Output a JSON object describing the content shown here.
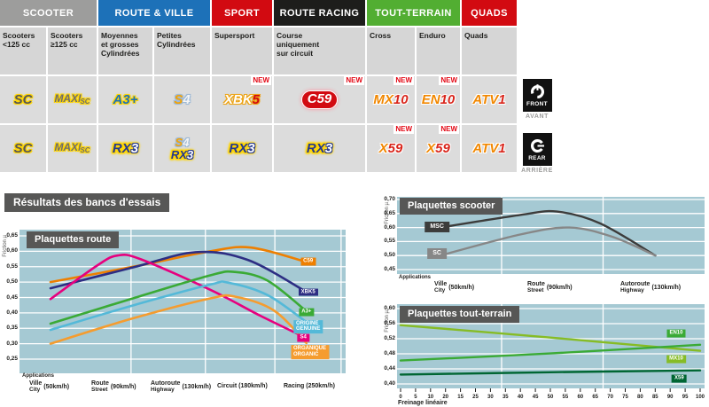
{
  "section_title": "Résultats des bancs d'essais",
  "new_label": "NEW",
  "side": {
    "front": "FRONT",
    "front_fr": "AVANT",
    "rear": "REAR",
    "rear_fr": "ARRIÈRE"
  },
  "table": {
    "categories": [
      {
        "label": "SCOOTER",
        "color": "#9d9d9c",
        "cols": 2
      },
      {
        "label": "ROUTE & VILLE",
        "color": "#1d71b8",
        "cols": 2
      },
      {
        "label": "SPORT",
        "color": "#d20a11",
        "cols": 1
      },
      {
        "label": "ROUTE RACING",
        "color": "#1d1d1b",
        "cols": 1
      },
      {
        "label": "TOUT-TERRAIN",
        "color": "#52ae32",
        "cols": 2
      },
      {
        "label": "QUADS",
        "color": "#d20a11",
        "cols": 1
      }
    ],
    "subcategories": [
      "Scooters\n<125 cc",
      "Scooters\n≥125 cc",
      "Moyennes\net grosses\nCylindrées",
      "Petites\nCylindrées",
      "Supersport",
      "Course\nuniquement\nsur circuit",
      "Cross",
      "Enduro",
      "Quads"
    ],
    "front_row": [
      {
        "badges": [
          {
            "text": "SC",
            "type": "sc"
          }
        ],
        "new": false
      },
      {
        "badges": [
          {
            "text": "MAXI SC",
            "type": "maxisc"
          }
        ],
        "new": false
      },
      {
        "badges": [
          {
            "text": "A3+",
            "type": "a3"
          }
        ],
        "new": false
      },
      {
        "badges": [
          {
            "text": "S4",
            "type": "s4"
          }
        ],
        "new": false
      },
      {
        "badges": [
          {
            "text": "XBK5",
            "type": "xbk5"
          }
        ],
        "new": true
      },
      {
        "badges": [
          {
            "text": "C59",
            "type": "c59"
          }
        ],
        "new": true
      },
      {
        "badges": [
          {
            "text": "MX10",
            "type": "off"
          }
        ],
        "new": true
      },
      {
        "badges": [
          {
            "text": "EN10",
            "type": "off"
          }
        ],
        "new": true
      },
      {
        "badges": [
          {
            "text": "ATV1",
            "type": "off"
          }
        ],
        "new": false
      }
    ],
    "rear_row": [
      {
        "badges": [
          {
            "text": "SC",
            "type": "sc"
          }
        ],
        "new": false
      },
      {
        "badges": [
          {
            "text": "MAXI SC",
            "type": "maxisc"
          }
        ],
        "new": false
      },
      {
        "badges": [
          {
            "text": "RX3",
            "type": "rx3"
          }
        ],
        "new": false
      },
      {
        "badges": [
          {
            "text": "S4",
            "type": "s4"
          },
          {
            "text": "RX3",
            "type": "rx3"
          }
        ],
        "new": false
      },
      {
        "badges": [
          {
            "text": "RX3",
            "type": "rx3"
          }
        ],
        "new": false
      },
      {
        "badges": [
          {
            "text": "RX3",
            "type": "rx3"
          }
        ],
        "new": false
      },
      {
        "badges": [
          {
            "text": "X59",
            "type": "off"
          }
        ],
        "new": true
      },
      {
        "badges": [
          {
            "text": "X59",
            "type": "off"
          }
        ],
        "new": true
      },
      {
        "badges": [
          {
            "text": "ATV1",
            "type": "off"
          }
        ],
        "new": false
      }
    ]
  },
  "chart_data": [
    {
      "id": "route",
      "type": "line",
      "title": "Plaquettes route",
      "ylabel": "Friction µ",
      "ylim": [
        0.25,
        0.65
      ],
      "yticks": [
        "0,65",
        "0,60",
        "0,55",
        "0,50",
        "0,45",
        "0,40",
        "0,35",
        "0,30",
        "0,25"
      ],
      "x_axis_label": "Applications",
      "x_stations": [
        {
          "fr": "Ville",
          "en": "City",
          "speed": "(50km/h)"
        },
        {
          "fr": "Route",
          "en": "Street",
          "speed": "(90km/h)"
        },
        {
          "fr": "Autoroute",
          "en": "Highway",
          "speed": "(130km/h)"
        },
        {
          "fr": "Circuit",
          "en": "",
          "speed": "(180km/h)"
        },
        {
          "fr": "Racing",
          "en": "",
          "speed": "(250km/h)"
        }
      ],
      "series": [
        {
          "name": "C59",
          "color": "#ee7f00",
          "points": [
            [
              9.5,
              0.5
            ],
            [
              35,
              0.55
            ],
            [
              58.5,
              0.6
            ],
            [
              71,
              0.612
            ],
            [
              88,
              0.565
            ]
          ]
        },
        {
          "name": "XBK5",
          "color": "#2d2e83",
          "points": [
            [
              9.5,
              0.48
            ],
            [
              35,
              0.548
            ],
            [
              54,
              0.597
            ],
            [
              70,
              0.572
            ],
            [
              88,
              0.468
            ]
          ]
        },
        {
          "name": "S4",
          "color": "#e6007e",
          "points": [
            [
              9.5,
              0.445
            ],
            [
              24,
              0.555
            ],
            [
              30,
              0.586
            ],
            [
              37,
              0.575
            ],
            [
              58.5,
              0.475
            ],
            [
              74,
              0.39
            ],
            [
              88,
              0.318
            ]
          ]
        },
        {
          "name": "A3+",
          "color": "#3aaa35",
          "points": [
            [
              9.5,
              0.365
            ],
            [
              35,
              0.448
            ],
            [
              58.5,
              0.522
            ],
            [
              66,
              0.533
            ],
            [
              76,
              0.505
            ],
            [
              88,
              0.405
            ]
          ]
        },
        {
          "name": "ORIGINE / GENUINE",
          "color": "#54b9d8",
          "points": [
            [
              9.5,
              0.345
            ],
            [
              35,
              0.425
            ],
            [
              58.5,
              0.492
            ],
            [
              64,
              0.498
            ],
            [
              76,
              0.458
            ],
            [
              88,
              0.37
            ]
          ]
        },
        {
          "name": "ORGANIQUE / ORGANIC",
          "color": "#f59c2f",
          "points": [
            [
              9.5,
              0.3
            ],
            [
              35,
              0.383
            ],
            [
              58.5,
              0.447
            ],
            [
              66,
              0.453
            ],
            [
              78,
              0.408
            ],
            [
              88,
              0.302
            ]
          ]
        }
      ],
      "line_labels": [
        {
          "lines": [
            "C59"
          ],
          "color": "#ee7f00",
          "x": 88.5,
          "v": 0.567
        },
        {
          "lines": [
            "XBK5"
          ],
          "color": "#2d2e83",
          "x": 88.5,
          "v": 0.467
        },
        {
          "lines": [
            "A3+"
          ],
          "color": "#3aaa35",
          "x": 88,
          "v": 0.403
        },
        {
          "lines": [
            "ORIGINE",
            "GENUINE"
          ],
          "color": "#54b9d8",
          "x": 88.5,
          "v": 0.355
        },
        {
          "lines": [
            "S4"
          ],
          "color": "#e6007e",
          "x": 87,
          "v": 0.318
        },
        {
          "lines": [
            "ORGANIQUE",
            "ORGANIC"
          ],
          "color": "#f59c2f",
          "x": 89,
          "v": 0.272
        }
      ]
    },
    {
      "id": "scooter",
      "type": "line",
      "title": "Plaquettes scooter",
      "ylabel": "Friction µ",
      "ylim": [
        0.45,
        0.7
      ],
      "yticks": [
        "0,70",
        "0,65",
        "0,60",
        "0,55",
        "0,50",
        "0,45"
      ],
      "x_axis_label": "Applications",
      "x_stations": [
        {
          "fr": "Ville",
          "en": "City",
          "speed": "(50km/h)"
        },
        {
          "fr": "Route",
          "en": "Street",
          "speed": "(90km/h)"
        },
        {
          "fr": "Autoroute",
          "en": "Highway",
          "speed": "(130km/h)"
        }
      ],
      "series": [
        {
          "name": "MSC",
          "color": "#3c3c3b",
          "points": [
            [
              14,
              0.6
            ],
            [
              40,
              0.645
            ],
            [
              52,
              0.657
            ],
            [
              66,
              0.615
            ],
            [
              84,
              0.5
            ]
          ]
        },
        {
          "name": "SC",
          "color": "#878787",
          "points": [
            [
              14,
              0.5
            ],
            [
              40,
              0.575
            ],
            [
              56,
              0.6
            ],
            [
              70,
              0.567
            ],
            [
              84,
              0.5
            ]
          ]
        }
      ],
      "line_labels": [
        {
          "lines": [
            "MSC"
          ],
          "color": "#3c3c3b",
          "x": 13,
          "v": 0.603,
          "box": true
        },
        {
          "lines": [
            "SC"
          ],
          "color": "#878787",
          "x": 13,
          "v": 0.507,
          "box": true
        }
      ]
    },
    {
      "id": "tt",
      "type": "line",
      "title": "Plaquettes tout-terrain",
      "ylabel": "Friction µ",
      "ylim": [
        0.4,
        0.6
      ],
      "yticks": [
        "0,60",
        "0,56",
        "0,52",
        "0,48",
        "0,44",
        "0,40"
      ],
      "xlabel": "Freinage linéaire",
      "xticks": [
        "0",
        "5",
        "10",
        "20",
        "15",
        "25",
        "30",
        "35",
        "40",
        "45",
        "50",
        "55",
        "60",
        "65",
        "70",
        "75",
        "80",
        "85",
        "90",
        "95",
        "100"
      ],
      "series": [
        {
          "name": "MX10",
          "color": "#86bc25",
          "points": [
            [
              0,
              0.556
            ],
            [
              50,
              0.523
            ],
            [
              100,
              0.488
            ]
          ]
        },
        {
          "name": "EN10",
          "color": "#3aaa35",
          "points": [
            [
              0,
              0.462
            ],
            [
              50,
              0.481
            ],
            [
              100,
              0.504
            ]
          ]
        },
        {
          "name": "X59",
          "color": "#006633",
          "points": [
            [
              0,
              0.425
            ],
            [
              50,
              0.431
            ],
            [
              100,
              0.436
            ]
          ]
        }
      ],
      "line_labels": [
        {
          "lines": [
            "EN10"
          ],
          "color": "#3aaa35",
          "x": 92,
          "v": 0.533
        },
        {
          "lines": [
            "MX10"
          ],
          "color": "#86bc25",
          "x": 92,
          "v": 0.466
        },
        {
          "lines": [
            "X59"
          ],
          "color": "#006633",
          "x": 93,
          "v": 0.414
        }
      ]
    }
  ]
}
